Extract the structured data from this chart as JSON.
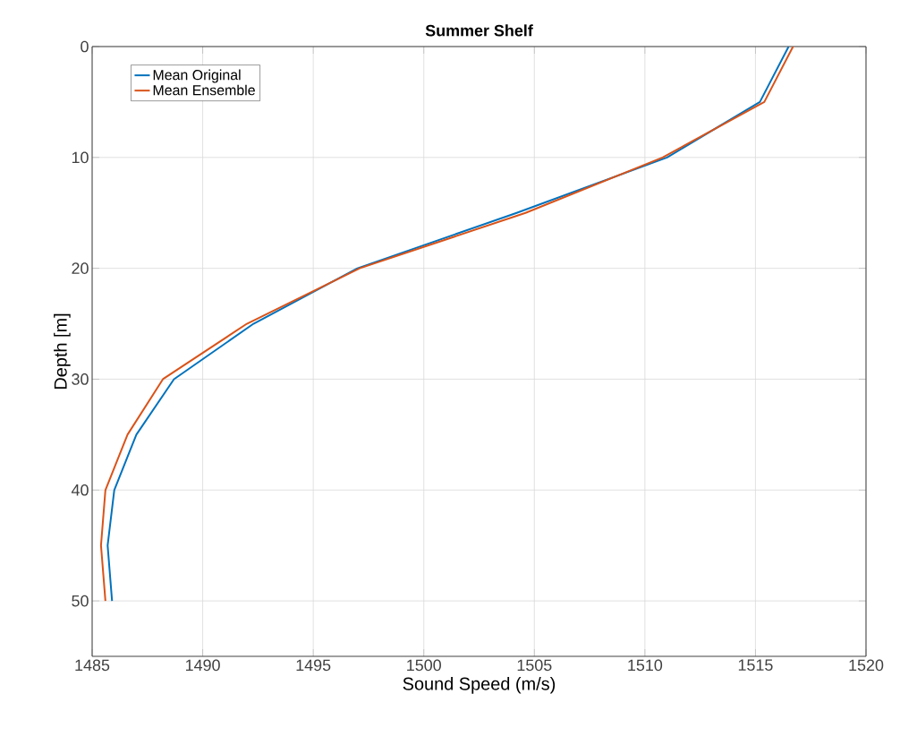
{
  "chart_data": {
    "type": "line",
    "title": "Summer Shelf",
    "xlabel": "Sound Speed (m/s)",
    "ylabel": "Depth [m]",
    "series": [
      {
        "name": "Mean Original",
        "color": "#0072bd",
        "x": [
          1516.5,
          1515.2,
          1511.0,
          1504.2,
          1497.0,
          1492.3,
          1488.7,
          1487.0,
          1486.0,
          1485.7,
          1485.9
        ],
        "values": [
          0,
          5,
          10,
          15,
          20,
          25,
          30,
          35,
          40,
          45,
          50
        ]
      },
      {
        "name": "Mean Ensemble",
        "color": "#d95319",
        "x": [
          1516.7,
          1515.4,
          1510.8,
          1504.6,
          1497.1,
          1492.0,
          1488.2,
          1486.6,
          1485.6,
          1485.4,
          1485.6
        ],
        "values": [
          0,
          5,
          10,
          15,
          20,
          25,
          30,
          35,
          40,
          45,
          50
        ]
      }
    ],
    "xlim": [
      1485,
      1520
    ],
    "xticks": [
      1485,
      1490,
      1495,
      1500,
      1505,
      1510,
      1515,
      1520
    ],
    "ylim": [
      55,
      0
    ],
    "yticks": [
      0,
      10,
      20,
      30,
      40,
      50
    ],
    "grid": true,
    "legend": "top left",
    "marker": "none",
    "line_style": "solid"
  }
}
